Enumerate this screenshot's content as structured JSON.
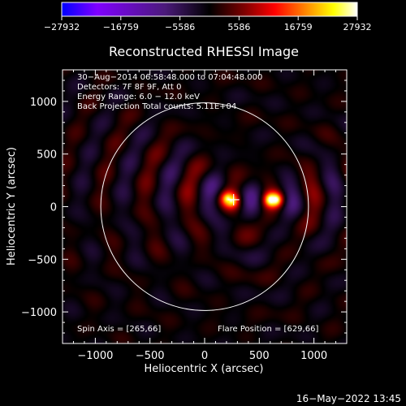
{
  "chart_data": {
    "type": "heatmap",
    "title": "Reconstructed RHESSI Image",
    "xlabel": "Heliocentric X (arcsec)",
    "ylabel": "Heliocentric Y (arcsec)",
    "xlim": [
      -1300,
      1300
    ],
    "ylim": [
      -1300,
      1300
    ],
    "x_ticks": [
      -1000,
      -500,
      0,
      500,
      1000
    ],
    "x_tick_labels": [
      "−1000",
      "−500",
      "0",
      "500",
      "1000"
    ],
    "y_ticks": [
      -1000,
      -500,
      0,
      500,
      1000
    ],
    "y_tick_labels": [
      "−1000",
      "−500",
      "0",
      "500",
      "1000"
    ],
    "colorbar": {
      "min": -27932,
      "max": 27932,
      "ticks": [
        -27932,
        -16759,
        -5586,
        5586,
        16759,
        27932
      ],
      "tick_labels": [
        "−27932",
        "−16759",
        "−5586",
        "5586",
        "16759",
        "27932"
      ],
      "colormap": [
        "#0000ff",
        "#8000ff",
        "#4b1a7a",
        "#000000",
        "#800000",
        "#ff0000",
        "#ff8000",
        "#ffff00",
        "#ffffff"
      ]
    },
    "info_lines": [
      "30−Aug−2014 06:58:48.000 to 07:04:48.000",
      "Detectors: 7F 8F 9F, Att 0",
      "Energy Range: 6.0 − 12.0 keV",
      "Back Projection    Total counts: 5.11E+04"
    ],
    "spin_axis_label": "Spin Axis = [265,66]",
    "flare_position_label": "Flare Position = [629,66]",
    "spin_axis": [
      265,
      66
    ],
    "flare_position": [
      629,
      66
    ],
    "solar_limb_radius": 950,
    "sources": [
      {
        "x": 629,
        "y": 66,
        "peak": 27932
      },
      {
        "x": 230,
        "y": 66,
        "peak": 19000
      }
    ],
    "timestamp": "16−May−2022 13:45"
  }
}
